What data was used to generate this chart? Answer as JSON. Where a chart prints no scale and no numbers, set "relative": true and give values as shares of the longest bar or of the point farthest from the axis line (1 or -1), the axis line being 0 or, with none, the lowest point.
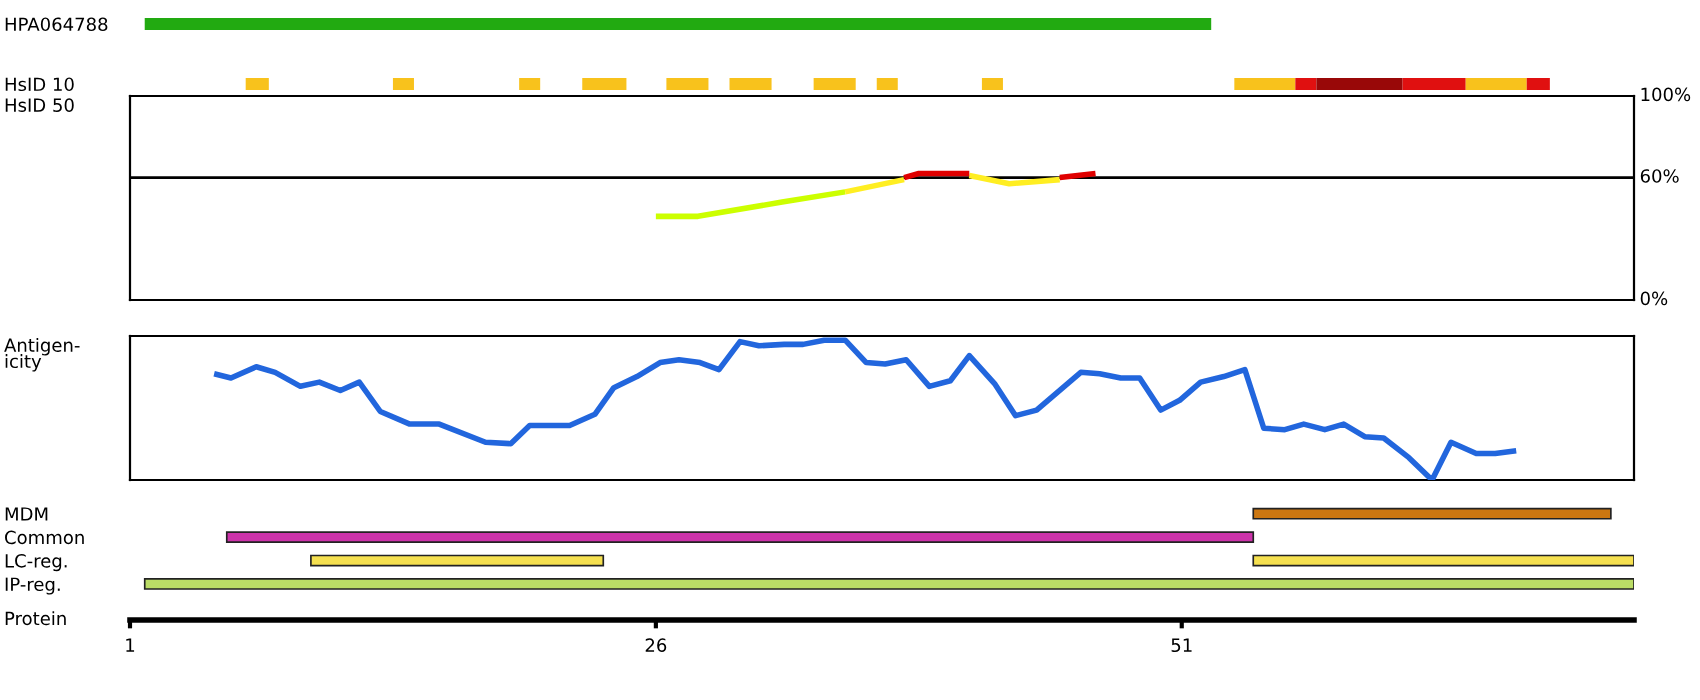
{
  "chart_data": [
    {
      "type": "bar",
      "orientation": "horizontal",
      "categories": [
        "HPA064788",
        "HsID 10"
      ],
      "xlim": [
        1,
        72.5
      ],
      "tick_labels": "y",
      "series": [
        {
          "color": "#22aa11",
          "values": [
            50.7,
            null
          ],
          "base": [
            1.7,
            null
          ]
        },
        {
          "color": "#f8c21c",
          "values": [
            null,
            1.1
          ],
          "base": [
            null,
            6.5
          ]
        },
        {
          "color": "#f8c21c",
          "values": [
            null,
            1.0
          ],
          "base": [
            null,
            13.5
          ]
        },
        {
          "color": "#f8c21c",
          "values": [
            null,
            1.0
          ],
          "base": [
            null,
            19.5
          ]
        },
        {
          "color": "#f8c21c",
          "values": [
            null,
            2.1
          ],
          "base": [
            null,
            22.5
          ]
        },
        {
          "color": "#f8c21c",
          "values": [
            null,
            2.0
          ],
          "base": [
            null,
            26.5
          ]
        },
        {
          "color": "#f8c21c",
          "values": [
            null,
            2.0
          ],
          "base": [
            null,
            29.5
          ]
        },
        {
          "color": "#f8c21c",
          "values": [
            null,
            2.0
          ],
          "base": [
            null,
            33.5
          ]
        },
        {
          "color": "#f8c21c",
          "values": [
            null,
            1.0
          ],
          "base": [
            null,
            36.5
          ]
        },
        {
          "color": "#f8c21c",
          "values": [
            null,
            1.0
          ],
          "base": [
            null,
            41.5
          ]
        },
        {
          "color": "#f8c21c",
          "values": [
            null,
            2.9
          ],
          "base": [
            null,
            53.5
          ]
        },
        {
          "color": "#e01010",
          "values": [
            null,
            1.0
          ],
          "base": [
            null,
            56.4
          ]
        },
        {
          "color": "#990808",
          "values": [
            null,
            4.1
          ],
          "base": [
            null,
            57.4
          ]
        },
        {
          "color": "#e01010",
          "values": [
            null,
            3.0
          ],
          "base": [
            null,
            61.5
          ]
        },
        {
          "color": "#f8c21c",
          "values": [
            null,
            2.9
          ],
          "base": [
            null,
            64.5
          ]
        },
        {
          "color": "#e01010",
          "values": [
            null,
            1.1
          ],
          "base": [
            null,
            67.4
          ]
        }
      ]
    },
    {
      "type": "line",
      "ylabel": "HsID 50",
      "xlim": [
        1,
        72.5
      ],
      "ylim": [
        0,
        100
      ],
      "yticks": [
        {
          "value": 0,
          "label": "0%"
        },
        {
          "value": 60,
          "label": "60%"
        },
        {
          "value": 100,
          "label": "100%"
        }
      ],
      "tick_labels": "y",
      "ref_lines": [
        {
          "axis": "y",
          "value": 60,
          "color": "#000000"
        }
      ],
      "series": [
        {
          "color": "#ccff00",
          "x": [
            26,
            28,
            32,
            35
          ],
          "values": [
            41,
            41,
            48,
            53
          ]
        },
        {
          "color": "#ffee22",
          "x": [
            35,
            37.8,
            39,
            40.9,
            42.8,
            45.2
          ],
          "values": [
            53,
            59,
            null,
            61,
            57,
            59
          ]
        },
        {
          "color": "#e00000",
          "x": [
            37.8,
            38.5,
            40.9
          ],
          "values": [
            60,
            62,
            62
          ]
        },
        {
          "color": "#e00000",
          "x": [
            45.2,
            46.05,
            46.9
          ],
          "values": [
            60,
            61,
            62
          ]
        }
      ]
    },
    {
      "type": "line",
      "relative": true,
      "ylabel": "Antigen-\nicity",
      "xlim": [
        1,
        72.5
      ],
      "tick_labels": false,
      "series": [
        {
          "color": "#2266dd",
          "x": [
            5.0,
            5.8,
            7.0,
            7.9,
            9.1,
            10.0,
            11.0,
            11.9,
            12.9,
            14.3,
            15.7,
            17.9,
            19.1,
            20.0,
            21.9,
            23.1,
            24.0,
            25.1,
            26.2,
            27.1,
            28.1,
            29.0,
            30.0,
            30.9,
            32.1,
            33.0,
            34.0,
            35.0,
            36.0,
            36.9,
            37.9,
            39.0,
            40.0,
            40.9,
            42.1,
            43.1,
            44.1,
            46.2,
            47.1,
            48.1,
            49.0,
            50.0,
            50.9,
            51.9,
            53.0,
            54.0,
            54.9,
            55.9,
            56.8,
            57.8,
            58.7,
            59.7,
            60.6,
            61.8,
            62.9,
            63.8,
            65.0,
            65.9,
            66.9
          ],
          "values": [
            0.76,
            0.73,
            0.81,
            0.77,
            0.67,
            0.7,
            0.64,
            0.7,
            0.49,
            0.4,
            0.4,
            0.27,
            0.26,
            0.39,
            0.39,
            0.47,
            0.66,
            0.74,
            0.84,
            0.86,
            0.84,
            0.79,
            0.99,
            0.96,
            0.97,
            0.97,
            1,
            1,
            0.84,
            0.83,
            0.86,
            0.67,
            0.71,
            0.89,
            0.69,
            0.46,
            0.5,
            0.77,
            0.76,
            0.73,
            0.73,
            0.5,
            0.57,
            0.7,
            0.74,
            0.79,
            0.37,
            0.36,
            0.4,
            0.36,
            0.4,
            0.31,
            0.3,
            0.16,
            0,
            0.27,
            0.19,
            0.19,
            0.21
          ]
        }
      ]
    },
    {
      "type": "bar",
      "orientation": "horizontal",
      "categories": [
        "MDM",
        "Common",
        "LC-reg.",
        "IP-reg."
      ],
      "xlabel": "Protein",
      "xlim": [
        1,
        72.5
      ],
      "xticks": [
        1,
        26,
        51
      ],
      "series": [
        {
          "color": "#cc7711",
          "values": [
            17.0,
            null,
            null,
            null
          ],
          "base": [
            54.4,
            null,
            null,
            null
          ]
        },
        {
          "color": "#cc33aa",
          "values": [
            null,
            48.8,
            null,
            null
          ],
          "base": [
            null,
            5.6,
            null,
            null
          ]
        },
        {
          "color": "#f5e050",
          "values": [
            null,
            null,
            13.9,
            null
          ],
          "base": [
            null,
            null,
            9.6,
            null
          ]
        },
        {
          "color": "#f5e050",
          "values": [
            null,
            null,
            18.1,
            null
          ],
          "base": [
            null,
            null,
            54.4,
            null
          ]
        },
        {
          "color": "#bbdd66",
          "values": [
            null,
            null,
            null,
            70.8
          ],
          "base": [
            null,
            null,
            null,
            1.7
          ]
        }
      ]
    }
  ]
}
